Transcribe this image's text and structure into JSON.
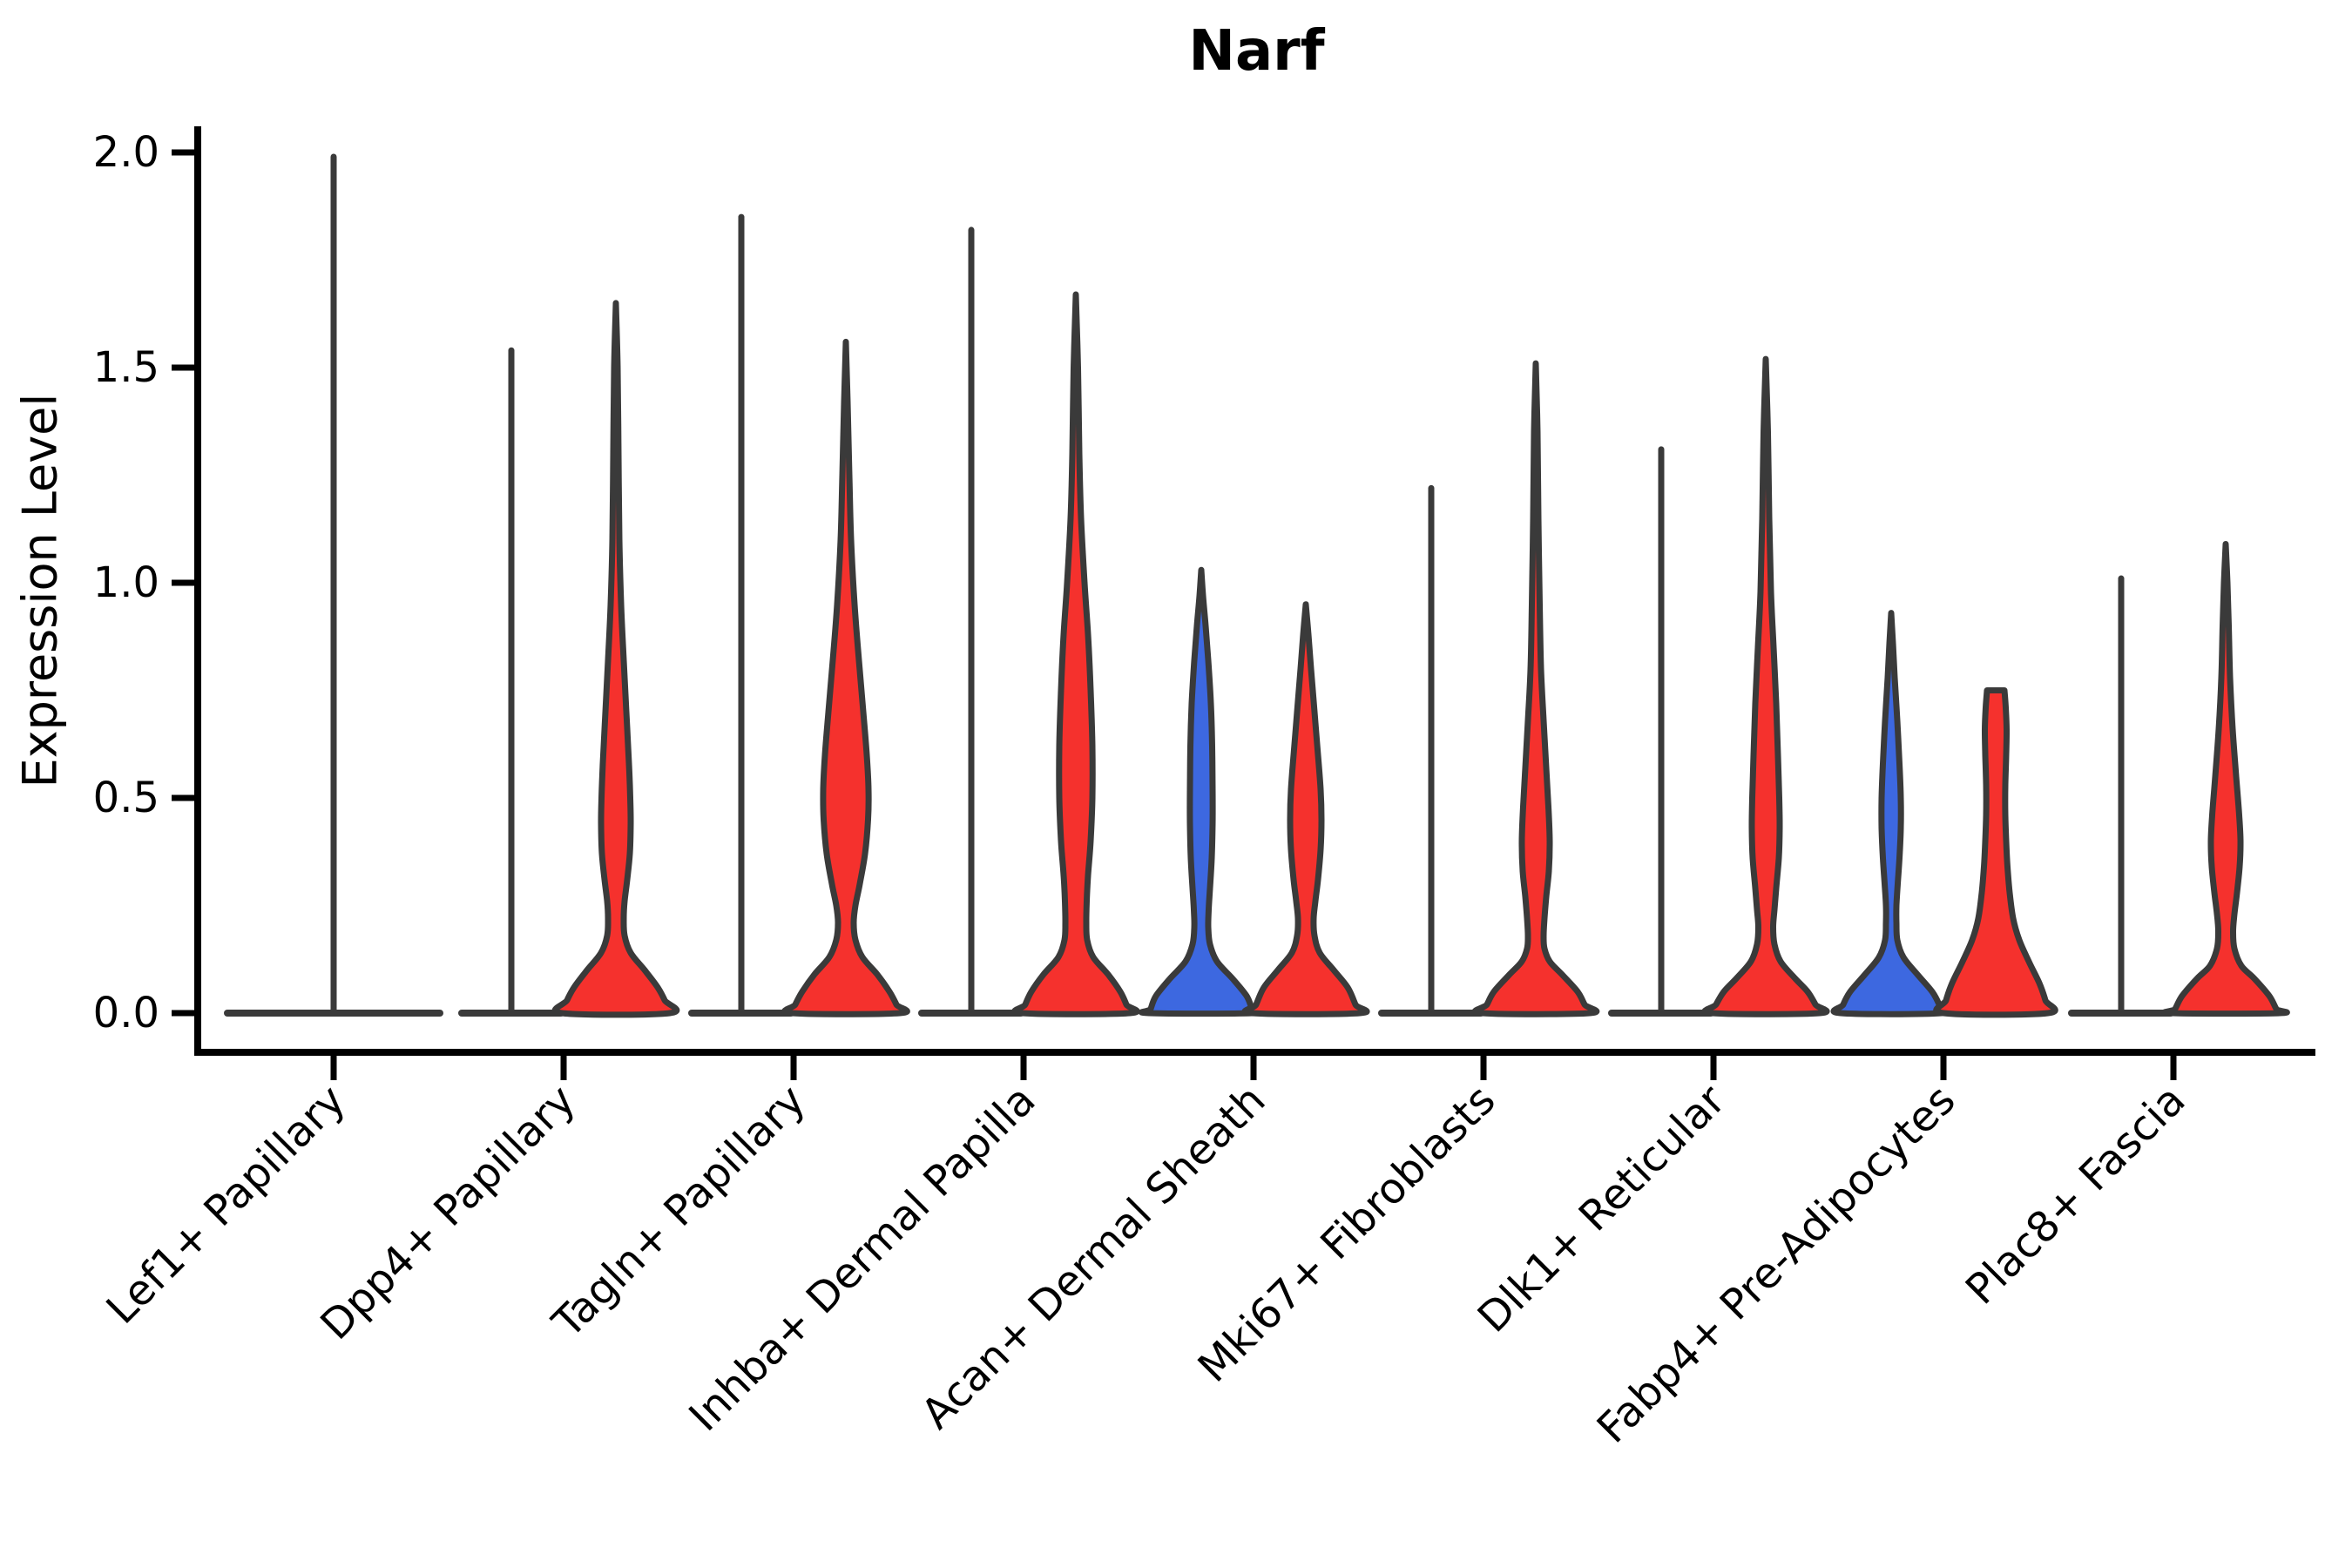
{
  "title": "Narf",
  "axes": {
    "ylabel": "Expression Level",
    "ytick_labels": [
      "2.0",
      "1.5",
      "1.0",
      "0.5",
      "0.0"
    ],
    "ytick_values": [
      2.0,
      1.5,
      1.0,
      0.5,
      0.0
    ]
  },
  "colors": {
    "red_fill": "#f5312d",
    "blue_fill": "#3d68e0",
    "outline": "#3a3a3a",
    "axis": "#000000"
  },
  "chart_data": {
    "type": "violin",
    "title": "Narf",
    "xlabel": "",
    "ylabel": "Expression Level",
    "ylim": [
      -0.09,
      2.06
    ],
    "yticks": [
      0.0,
      0.5,
      1.0,
      1.5,
      2.0
    ],
    "grid": false,
    "legend": "none",
    "categories": [
      "Lef1+ Papillary",
      "Dpp4+ Papillary",
      "Tagln+ Papillary",
      "Inhba+ Dermal Papilla",
      "Acan+ Dermal Sheath",
      "Mki67+ Fibroblasts",
      "Dlk1+ Reticular",
      "Fabp4+ Pre-Adipocytes",
      "Plac8+ Fascia"
    ],
    "groups": [
      {
        "id": "blue",
        "color": "#3d68e0"
      },
      {
        "id": "red",
        "color": "#f5312d"
      }
    ],
    "violins": [
      {
        "category": "Lef1+ Papillary",
        "items": [
          {
            "type": "spike",
            "dodge": "center",
            "max": 1.99,
            "base_half": 122
          }
        ]
      },
      {
        "category": "Dpp4+ Papillary",
        "items": [
          {
            "type": "spike",
            "dodge": "left",
            "max": 1.54,
            "base_half": 57
          },
          {
            "type": "violin",
            "color": "red",
            "dodge": "right",
            "max": 1.65,
            "profile": [
              [
                1.65,
                0
              ],
              [
                1.5,
                2
              ],
              [
                1.3,
                3
              ],
              [
                1.1,
                4
              ],
              [
                0.95,
                6
              ],
              [
                0.82,
                9
              ],
              [
                0.7,
                12
              ],
              [
                0.58,
                15
              ],
              [
                0.5,
                16.5
              ],
              [
                0.44,
                17
              ],
              [
                0.37,
                16
              ],
              [
                0.31,
                13
              ],
              [
                0.26,
                10
              ],
              [
                0.22,
                9
              ],
              [
                0.18,
                10
              ],
              [
                0.14,
                17
              ],
              [
                0.1,
                33
              ],
              [
                0.06,
                48
              ],
              [
                0.03,
                56
              ],
              [
                0,
                62
              ]
            ]
          }
        ]
      },
      {
        "category": "Tagln+ Papillary",
        "items": [
          {
            "type": "spike",
            "dodge": "left",
            "max": 1.85,
            "base_half": 57
          },
          {
            "type": "violin",
            "color": "red",
            "dodge": "right",
            "max": 1.56,
            "profile": [
              [
                1.56,
                0
              ],
              [
                1.42,
                2
              ],
              [
                1.25,
                4
              ],
              [
                1.1,
                6
              ],
              [
                0.95,
                10
              ],
              [
                0.82,
                15
              ],
              [
                0.7,
                20
              ],
              [
                0.6,
                24
              ],
              [
                0.52,
                26
              ],
              [
                0.45,
                25.5
              ],
              [
                0.37,
                22
              ],
              [
                0.3,
                16
              ],
              [
                0.25,
                11
              ],
              [
                0.21,
                9
              ],
              [
                0.17,
                11
              ],
              [
                0.13,
                19
              ],
              [
                0.09,
                36
              ],
              [
                0.05,
                50
              ],
              [
                0.02,
                58
              ],
              [
                0,
                62
              ]
            ]
          }
        ]
      },
      {
        "category": "Inhba+ Dermal Papilla",
        "items": [
          {
            "type": "spike",
            "dodge": "left",
            "max": 1.82,
            "base_half": 57
          },
          {
            "type": "violin",
            "color": "red",
            "dodge": "right",
            "max": 1.67,
            "profile": [
              [
                1.67,
                0
              ],
              [
                1.5,
                2.5
              ],
              [
                1.3,
                4
              ],
              [
                1.15,
                6
              ],
              [
                1.0,
                10
              ],
              [
                0.88,
                14
              ],
              [
                0.75,
                17
              ],
              [
                0.62,
                19
              ],
              [
                0.5,
                19
              ],
              [
                0.4,
                17
              ],
              [
                0.32,
                14
              ],
              [
                0.26,
                12.5
              ],
              [
                0.21,
                12
              ],
              [
                0.17,
                13
              ],
              [
                0.13,
                20
              ],
              [
                0.09,
                37
              ],
              [
                0.05,
                51
              ],
              [
                0.02,
                58
              ],
              [
                0,
                62
              ]
            ]
          }
        ]
      },
      {
        "category": "Acan+ Dermal Sheath",
        "items": [
          {
            "type": "violin",
            "color": "blue",
            "dodge": "left",
            "max": 1.03,
            "profile": [
              [
                1.03,
                0
              ],
              [
                0.97,
                2
              ],
              [
                0.9,
                5
              ],
              [
                0.82,
                8
              ],
              [
                0.72,
                11
              ],
              [
                0.62,
                12.5
              ],
              [
                0.52,
                13
              ],
              [
                0.44,
                13
              ],
              [
                0.36,
                12
              ],
              [
                0.29,
                10
              ],
              [
                0.24,
                8.5
              ],
              [
                0.2,
                8
              ],
              [
                0.16,
                10
              ],
              [
                0.12,
                18
              ],
              [
                0.08,
                36
              ],
              [
                0.04,
                52
              ],
              [
                0.01,
                58
              ],
              [
                0,
                60
              ]
            ]
          },
          {
            "type": "violin",
            "color": "red",
            "dodge": "right",
            "max": 0.95,
            "profile": [
              [
                0.95,
                0
              ],
              [
                0.88,
                3
              ],
              [
                0.8,
                6
              ],
              [
                0.7,
                10
              ],
              [
                0.6,
                14
              ],
              [
                0.52,
                17
              ],
              [
                0.45,
                18
              ],
              [
                0.38,
                17
              ],
              [
                0.31,
                14
              ],
              [
                0.26,
                11
              ],
              [
                0.22,
                9
              ],
              [
                0.18,
                10
              ],
              [
                0.14,
                16
              ],
              [
                0.1,
                32
              ],
              [
                0.06,
                48
              ],
              [
                0.02,
                57
              ],
              [
                0,
                62
              ]
            ]
          }
        ]
      },
      {
        "category": "Mki67+ Fibroblasts",
        "items": [
          {
            "type": "spike",
            "dodge": "left",
            "max": 1.22,
            "base_half": 57
          },
          {
            "type": "violin",
            "color": "red",
            "dodge": "right",
            "max": 1.51,
            "profile": [
              [
                1.51,
                0
              ],
              [
                1.35,
                2
              ],
              [
                1.15,
                3
              ],
              [
                0.95,
                4.5
              ],
              [
                0.8,
                6
              ],
              [
                0.68,
                9
              ],
              [
                0.57,
                12
              ],
              [
                0.48,
                14.5
              ],
              [
                0.4,
                16
              ],
              [
                0.33,
                15
              ],
              [
                0.27,
                12
              ],
              [
                0.22,
                10
              ],
              [
                0.18,
                9
              ],
              [
                0.15,
                10
              ],
              [
                0.12,
                16
              ],
              [
                0.09,
                30
              ],
              [
                0.05,
                48
              ],
              [
                0.02,
                56
              ],
              [
                0,
                62
              ]
            ]
          }
        ]
      },
      {
        "category": "Dlk1+ Reticular",
        "items": [
          {
            "type": "spike",
            "dodge": "left",
            "max": 1.31,
            "base_half": 57
          },
          {
            "type": "violin",
            "color": "red",
            "dodge": "right",
            "max": 1.52,
            "profile": [
              [
                1.52,
                0
              ],
              [
                1.35,
                2.5
              ],
              [
                1.15,
                4
              ],
              [
                0.98,
                6
              ],
              [
                0.85,
                9
              ],
              [
                0.72,
                12
              ],
              [
                0.6,
                14
              ],
              [
                0.5,
                15.5
              ],
              [
                0.43,
                16
              ],
              [
                0.36,
                15
              ],
              [
                0.29,
                12
              ],
              [
                0.24,
                10
              ],
              [
                0.2,
                8.5
              ],
              [
                0.16,
                10
              ],
              [
                0.12,
                17
              ],
              [
                0.08,
                34
              ],
              [
                0.05,
                48
              ],
              [
                0.02,
                57
              ],
              [
                0,
                62
              ]
            ]
          }
        ]
      },
      {
        "category": "Fabp4+ Pre-Adipocytes",
        "items": [
          {
            "type": "violin",
            "color": "blue",
            "dodge": "left",
            "max": 0.93,
            "profile": [
              [
                0.93,
                0
              ],
              [
                0.86,
                2
              ],
              [
                0.78,
                4
              ],
              [
                0.68,
                7
              ],
              [
                0.58,
                9.5
              ],
              [
                0.5,
                11
              ],
              [
                0.43,
                11
              ],
              [
                0.36,
                9.5
              ],
              [
                0.3,
                7.5
              ],
              [
                0.25,
                6
              ],
              [
                0.21,
                6
              ],
              [
                0.17,
                7
              ],
              [
                0.13,
                14
              ],
              [
                0.09,
                30
              ],
              [
                0.05,
                47
              ],
              [
                0.02,
                55
              ],
              [
                0,
                58
              ]
            ]
          },
          {
            "type": "violin",
            "color": "red",
            "dodge": "right",
            "max": 0.75,
            "profile": [
              [
                0.75,
                10
              ],
              [
                0.71,
                11.5
              ],
              [
                0.66,
                12.5
              ],
              [
                0.6,
                12
              ],
              [
                0.53,
                11
              ],
              [
                0.46,
                11
              ],
              [
                0.4,
                12
              ],
              [
                0.34,
                13.5
              ],
              [
                0.28,
                16
              ],
              [
                0.22,
                20
              ],
              [
                0.17,
                27
              ],
              [
                0.12,
                38
              ],
              [
                0.07,
                50
              ],
              [
                0.03,
                57
              ],
              [
                0,
                60
              ]
            ]
          }
        ]
      },
      {
        "category": "Plac8+ Fascia",
        "items": [
          {
            "type": "spike",
            "dodge": "left",
            "max": 1.01,
            "base_half": 57
          },
          {
            "type": "violin",
            "color": "red",
            "dodge": "right",
            "max": 1.09,
            "profile": [
              [
                1.09,
                0
              ],
              [
                1.0,
                2
              ],
              [
                0.9,
                3.5
              ],
              [
                0.78,
                5
              ],
              [
                0.66,
                8
              ],
              [
                0.55,
                12
              ],
              [
                0.46,
                15.5
              ],
              [
                0.4,
                17
              ],
              [
                0.34,
                16
              ],
              [
                0.28,
                13
              ],
              [
                0.23,
                10
              ],
              [
                0.19,
                8.5
              ],
              [
                0.15,
                10
              ],
              [
                0.11,
                18
              ],
              [
                0.08,
                33
              ],
              [
                0.04,
                50
              ],
              [
                0.01,
                58
              ],
              [
                0,
                62
              ]
            ]
          }
        ]
      }
    ]
  }
}
